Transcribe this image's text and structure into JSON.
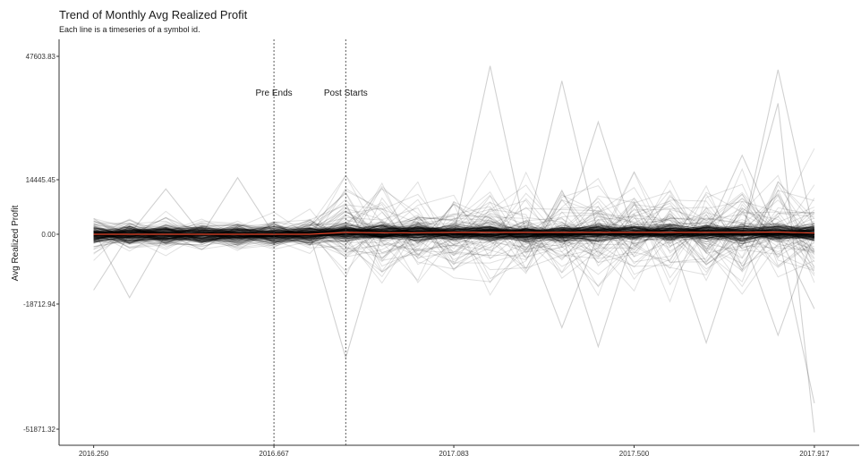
{
  "chart_data": {
    "type": "line",
    "title": "Trend of Monthly Avg Realized Profit",
    "subtitle": "Each line is a timeseries of a symbol id.",
    "xlabel": "",
    "ylabel": "Avg Realized Profit",
    "x_ticks": [
      2016.25,
      2016.667,
      2017.083,
      2017.5,
      2017.917
    ],
    "x_tick_labels": [
      "2016.250",
      "2016.667",
      "2017.083",
      "2017.500",
      "2017.917"
    ],
    "y_ticks": [
      -51871.32,
      -18712.94,
      0.0,
      14445.45,
      47603.83
    ],
    "y_tick_labels": [
      "-51871.32",
      "-18712.94",
      "0.00",
      "14445.45",
      "47603.83"
    ],
    "xlim": [
      2016.17,
      2018.0
    ],
    "ylim": [
      -55000,
      51000
    ],
    "y_scale": "pseudo-log",
    "grid": false,
    "legend": "none",
    "vlines": [
      {
        "x": 2016.667,
        "label": "Pre Ends",
        "style": "dotted"
      },
      {
        "x": 2016.833,
        "label": "Post Starts",
        "style": "dotted"
      }
    ],
    "x": [
      2016.25,
      2016.333,
      2016.417,
      2016.5,
      2016.583,
      2016.667,
      2016.75,
      2016.833,
      2016.917,
      2017.0,
      2017.083,
      2017.167,
      2017.25,
      2017.333,
      2017.417,
      2017.5,
      2017.583,
      2017.667,
      2017.75,
      2017.833,
      2017.917
    ],
    "series_count_note": "",
    "mean_series": {
      "color": "#e8462a",
      "values": [
        0,
        0,
        0,
        0,
        0,
        0,
        0,
        500,
        400,
        400,
        500,
        500,
        500,
        500,
        500,
        500,
        500,
        500,
        500,
        600,
        300
      ]
    },
    "highlighted_series": [
      {
        "values": [
          -15000,
          0,
          0,
          0,
          0,
          1000,
          500,
          3000,
          0,
          0,
          0,
          0,
          0,
          0,
          0,
          0,
          0,
          0,
          0,
          0,
          -20000
        ]
      },
      {
        "values": [
          1000,
          -17000,
          0,
          0,
          0,
          0,
          0,
          0,
          0,
          0,
          0,
          0,
          0,
          0,
          0,
          0,
          0,
          0,
          0,
          0,
          0
        ]
      },
      {
        "values": [
          0,
          0,
          12000,
          0,
          0,
          0,
          0,
          0,
          0,
          0,
          0,
          0,
          0,
          0,
          0,
          0,
          0,
          0,
          0,
          0,
          0
        ]
      },
      {
        "values": [
          0,
          0,
          0,
          0,
          15000,
          0,
          0,
          0,
          0,
          0,
          0,
          0,
          0,
          0,
          0,
          0,
          0,
          0,
          0,
          0,
          0
        ]
      },
      {
        "values": [
          0,
          0,
          0,
          0,
          0,
          0,
          0,
          -33000,
          0,
          0,
          0,
          0,
          0,
          0,
          0,
          0,
          0,
          0,
          0,
          0,
          0
        ]
      },
      {
        "values": [
          0,
          0,
          0,
          0,
          0,
          0,
          0,
          0,
          0,
          0,
          0,
          0,
          0,
          41000,
          0,
          0,
          0,
          0,
          0,
          0,
          0
        ]
      },
      {
        "values": [
          0,
          0,
          0,
          0,
          0,
          0,
          0,
          0,
          0,
          0,
          0,
          0,
          0,
          0,
          0,
          0,
          0,
          -29000,
          0,
          0,
          0
        ]
      },
      {
        "values": [
          0,
          0,
          0,
          0,
          0,
          0,
          0,
          0,
          0,
          0,
          0,
          45000,
          0,
          0,
          0,
          0,
          0,
          0,
          0,
          0,
          0
        ]
      },
      {
        "values": [
          0,
          0,
          0,
          0,
          0,
          0,
          0,
          0,
          0,
          0,
          0,
          0,
          0,
          0,
          -30000,
          0,
          0,
          0,
          0,
          0,
          0
        ]
      },
      {
        "values": [
          0,
          0,
          0,
          0,
          0,
          0,
          0,
          0,
          0,
          0,
          0,
          0,
          0,
          0,
          0,
          0,
          0,
          0,
          0,
          44000,
          0
        ]
      },
      {
        "values": [
          0,
          0,
          0,
          0,
          0,
          0,
          0,
          0,
          0,
          0,
          0,
          0,
          0,
          0,
          0,
          0,
          0,
          0,
          0,
          35000,
          -53000
        ]
      },
      {
        "values": [
          0,
          0,
          0,
          0,
          0,
          0,
          0,
          0,
          0,
          0,
          0,
          0,
          0,
          0,
          0,
          0,
          0,
          0,
          0,
          -27000,
          0
        ]
      },
      {
        "values": [
          0,
          0,
          0,
          0,
          0,
          0,
          0,
          0,
          0,
          0,
          0,
          0,
          0,
          0,
          30000,
          0,
          0,
          0,
          0,
          0,
          -45000
        ]
      },
      {
        "values": [
          0,
          0,
          0,
          0,
          0,
          0,
          0,
          0,
          0,
          0,
          0,
          0,
          0,
          -25000,
          0,
          0,
          0,
          0,
          0,
          0,
          0
        ]
      },
      {
        "values": [
          0,
          0,
          0,
          0,
          0,
          0,
          0,
          0,
          0,
          0,
          0,
          0,
          0,
          0,
          0,
          0,
          0,
          0,
          21000,
          0,
          0
        ]
      }
    ],
    "background_series_count": 180,
    "background_envelope": {
      "core_abs": 2500,
      "spread_abs_before_post": 7000,
      "spread_abs_after_post": 20000
    }
  }
}
